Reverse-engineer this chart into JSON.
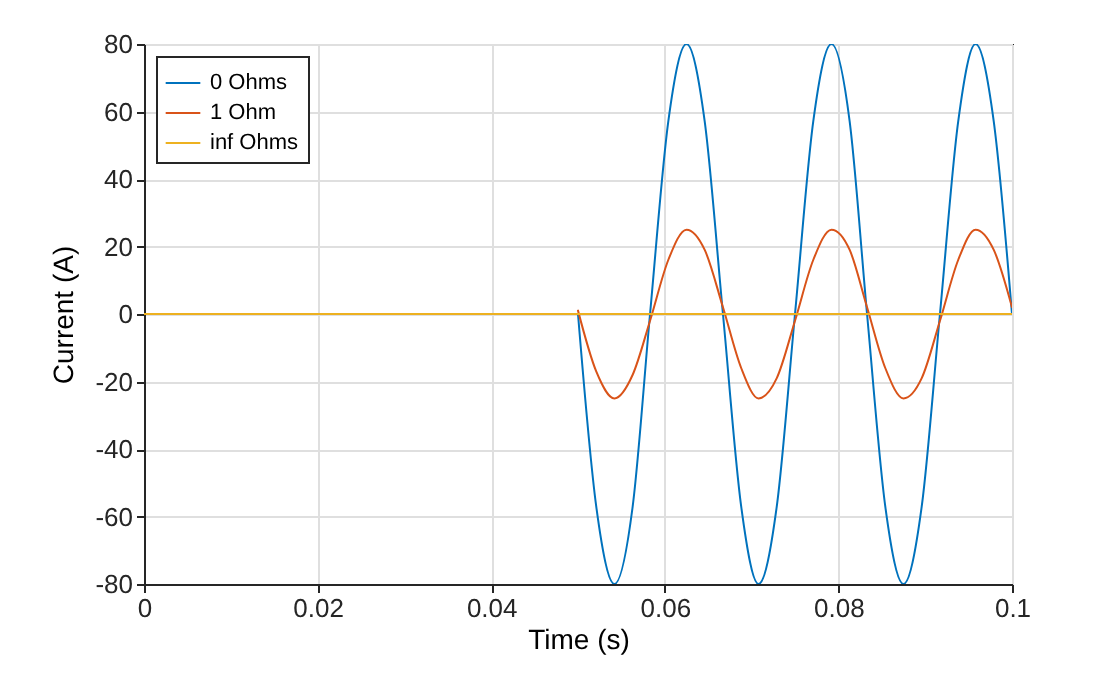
{
  "chart_data": {
    "type": "line",
    "xlabel": "Time (s)",
    "ylabel": "Current (A)",
    "xlim": [
      0,
      0.1
    ],
    "xticks": [
      0,
      0.02,
      0.04,
      0.06,
      0.08,
      0.1
    ],
    "ylim": [
      -80,
      80
    ],
    "yticks": [
      -80,
      -60,
      -40,
      -20,
      0,
      20,
      40,
      60,
      80
    ],
    "grid": true,
    "legend": "top left",
    "line_style": "solid",
    "marker": "none",
    "series": [
      {
        "name": "0 Ohms",
        "color": "#0072bd",
        "x": [
          0.05,
          0.0521,
          0.0542,
          0.0563,
          0.0583,
          0.0604,
          0.0625,
          0.0646,
          0.0667,
          0.0688,
          0.0708,
          0.0729,
          0.075,
          0.0771,
          0.0792,
          0.0813,
          0.0833,
          0.0854,
          0.0875,
          0.0896,
          0.0917,
          0.0938,
          0.0958,
          0.0979,
          0.1
        ],
        "values": [
          0,
          -57,
          -80,
          -57,
          0,
          57,
          80,
          57,
          0,
          -57,
          -80,
          -57,
          0,
          57,
          80,
          57,
          0,
          -57,
          -80,
          -57,
          0,
          57,
          80,
          57,
          0
        ]
      },
      {
        "name": "1 Ohm",
        "color": "#d95319",
        "x": [
          0.05,
          0.0521,
          0.0542,
          0.0563,
          0.0583,
          0.0604,
          0.0625,
          0.0646,
          0.0667,
          0.0688,
          0.0708,
          0.0729,
          0.075,
          0.0771,
          0.0792,
          0.0813,
          0.0833,
          0.0854,
          0.0875,
          0.0896,
          0.0917,
          0.0938,
          0.0958,
          0.0979,
          0.1
        ],
        "values": [
          1,
          -17,
          -25,
          -18,
          -2,
          16,
          25,
          19,
          2,
          -16,
          -25,
          -19,
          -2,
          16,
          25,
          19,
          2,
          -16,
          -25,
          -19,
          -2,
          16,
          25,
          19,
          2
        ]
      },
      {
        "name": "inf Ohms",
        "color": "#edb120",
        "x": [
          0,
          0.1
        ],
        "values": [
          0,
          0
        ]
      }
    ]
  }
}
